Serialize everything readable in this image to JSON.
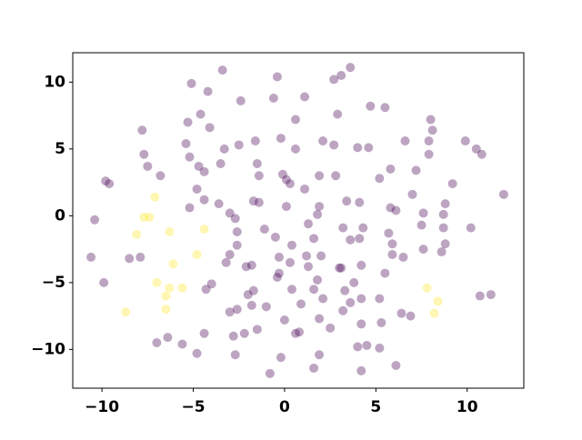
{
  "chart_data": {
    "type": "scatter",
    "xlim": [
      -11.6,
      13.1
    ],
    "ylim": [
      -12.9,
      12.2
    ],
    "xticks": [
      {
        "value": -10,
        "label": "−10"
      },
      {
        "value": -5,
        "label": "−5"
      },
      0,
      5,
      10
    ],
    "yticks": [
      {
        "value": -10,
        "label": "−10"
      },
      {
        "value": -5,
        "label": "−5"
      },
      0,
      5,
      10
    ],
    "series": [
      {
        "color": "#440154",
        "x": [
          -3.4,
          -0.4,
          3.6,
          3.1,
          2.7,
          -5.1,
          -4.2,
          1.1,
          -2.4,
          -0.6,
          4.7,
          5.5,
          -4.6,
          2.9,
          0.6,
          8.0,
          -7.8,
          -5.3,
          -4.1,
          8.1,
          -0.2,
          9.9,
          6.6,
          2.1,
          7.9,
          -5.4,
          -2.5,
          -1.6,
          0.6,
          2.7,
          4.0,
          4.6,
          -3.3,
          -7.7,
          -5.2,
          7.9,
          10.5,
          10.8,
          -1.5,
          -7.5,
          -4.7,
          -3.5,
          -4.4,
          -6.8,
          -1.4,
          -0.1,
          1.9,
          2.8,
          5.8,
          7.2,
          0.1,
          5.2,
          -9.8,
          -9.6,
          0.3,
          9.2,
          -4.8,
          1.1,
          7.0,
          12.0,
          -4.4,
          -3.6,
          -1.7,
          -1.4,
          3.4,
          4.1,
          8.8,
          -5.2,
          0.1,
          1.9,
          5.8,
          6.1,
          -3.0,
          -2.7,
          1.8,
          8.7,
          7.6,
          -10.4,
          1.3,
          7.5,
          10.2,
          3.2,
          4.3,
          8.7,
          -1.1,
          -2.6,
          5.7,
          -0.5,
          1.6,
          3.6,
          4.1,
          -2.6,
          0.4,
          5.9,
          8.8,
          7.6,
          8.6,
          5.9,
          6.5,
          1.2,
          2.0,
          -3.0,
          -0.3,
          -10.6,
          -8.5,
          -7.9,
          0.3,
          -3.2,
          -2.1,
          -1.8,
          1.3,
          3.0,
          3.1,
          4.2,
          5.5,
          -0.3,
          -0.4,
          -4.0,
          -4.3,
          -9.9,
          1.8,
          3.8,
          0.4,
          1.6,
          -2.0,
          -1.7,
          3.3,
          5.2,
          2.1,
          4.2,
          10.7,
          11.3,
          -1.8,
          -2.6,
          -1.0,
          0.9,
          3.6,
          3.2,
          -3.0,
          6.4,
          6.9,
          0.0,
          1.9,
          4.2,
          5.3,
          -1.5,
          2.5,
          0.6,
          0.8,
          -4.4,
          -2.8,
          -2.2,
          -6.4,
          -7.0,
          -5.6,
          4.0,
          4.5,
          5.2,
          -4.8,
          -2.7,
          1.9,
          -0.2,
          6.1,
          1.6,
          4.2,
          -0.8
        ],
        "y": [
          10.9,
          10.4,
          11.1,
          10.5,
          10.2,
          9.9,
          9.3,
          8.9,
          8.6,
          8.8,
          8.2,
          8.1,
          7.6,
          7.6,
          7.2,
          7.2,
          6.4,
          7.0,
          6.6,
          6.4,
          5.8,
          5.6,
          5.6,
          5.6,
          5.6,
          5.4,
          5.3,
          5.6,
          5.0,
          5.3,
          5.1,
          5.1,
          5.0,
          4.6,
          4.4,
          4.6,
          5.0,
          4.6,
          3.9,
          3.7,
          3.7,
          3.9,
          3.3,
          3.0,
          3.0,
          3.1,
          3.0,
          3.0,
          3.5,
          3.4,
          2.7,
          2.8,
          2.6,
          2.4,
          2.4,
          2.4,
          2.0,
          2.0,
          1.6,
          1.6,
          1.2,
          0.9,
          1.1,
          1.0,
          1.1,
          1.0,
          0.9,
          0.6,
          0.7,
          0.7,
          0.6,
          0.4,
          0.2,
          -0.2,
          0.1,
          0.1,
          0.2,
          -0.3,
          -0.6,
          -0.7,
          -0.9,
          -0.9,
          -0.9,
          -0.9,
          -1.0,
          -1.2,
          -1.3,
          -1.6,
          -1.7,
          -1.8,
          -1.7,
          -2.2,
          -2.2,
          -2.1,
          -2.1,
          -2.5,
          -2.7,
          -2.9,
          -3.1,
          -3.0,
          -3.0,
          -2.9,
          -3.1,
          -3.1,
          -3.2,
          -3.1,
          -3.5,
          -3.5,
          -3.8,
          -3.7,
          -3.8,
          -3.9,
          -3.9,
          -3.7,
          -4.3,
          -4.3,
          -4.6,
          -5.1,
          -5.5,
          -5.0,
          -4.8,
          -5.0,
          -5.5,
          -5.5,
          -5.9,
          -5.6,
          -5.6,
          -6.2,
          -6.2,
          -6.2,
          -6.0,
          -5.9,
          -6.7,
          -7.0,
          -6.8,
          -6.6,
          -6.5,
          -7.1,
          -7.2,
          -7.3,
          -7.5,
          -7.8,
          -7.7,
          -8.1,
          -8.0,
          -8.5,
          -8.4,
          -8.8,
          -8.7,
          -8.8,
          -9.0,
          -8.8,
          -9.1,
          -9.5,
          -9.6,
          -9.8,
          -9.7,
          -9.9,
          -10.3,
          -10.4,
          -10.4,
          -10.6,
          -11.2,
          -11.4,
          -11.6,
          -11.8
        ]
      },
      {
        "color": "#fde725",
        "x": [
          -7.1,
          -7.7,
          -7.4,
          -6.3,
          -8.1,
          -4.4,
          -6.1,
          -4.8,
          -7.0,
          -6.3,
          -6.5,
          -5.6,
          -6.5,
          -8.7,
          7.8,
          8.4,
          8.2
        ],
        "y": [
          1.4,
          -0.1,
          -0.1,
          -1.2,
          -1.4,
          -1.0,
          -3.6,
          -2.9,
          -5.0,
          -5.4,
          -6.0,
          -5.4,
          -7.0,
          -7.2,
          -5.4,
          -6.4,
          -7.3
        ]
      }
    ]
  }
}
